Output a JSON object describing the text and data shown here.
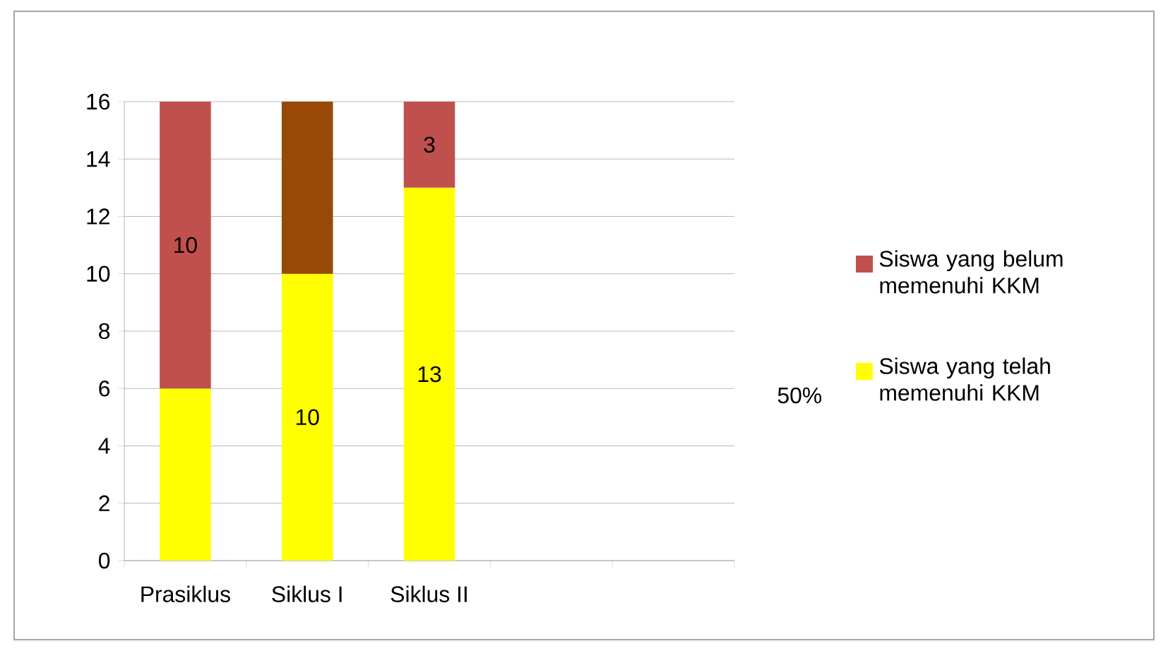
{
  "chart_data": {
    "type": "bar",
    "stacked": true,
    "categories": [
      "Prasiklus",
      "Siklus I",
      "Siklus II",
      null,
      null
    ],
    "series": [
      {
        "name": "Siswa yang telah memenuhi KKM",
        "color": "#ffff00",
        "values": [
          6,
          10,
          13,
          null,
          null
        ],
        "value_labels": [
          null,
          "10",
          "13",
          null,
          null
        ]
      },
      {
        "name": "Siswa yang belum memenuhi KKM",
        "color": "#c0504d",
        "colors": [
          "#c0504d",
          "#984807",
          "#c0504d",
          null,
          null
        ],
        "values": [
          10,
          6,
          3,
          null,
          null
        ],
        "value_labels": [
          "10",
          null,
          "3",
          null,
          null
        ]
      }
    ],
    "ylim": [
      0,
      16
    ],
    "yticks": [
      0,
      2,
      4,
      6,
      8,
      10,
      12,
      14,
      16
    ],
    "grid": "y",
    "legend": "right",
    "annotations": [
      "50%"
    ]
  }
}
